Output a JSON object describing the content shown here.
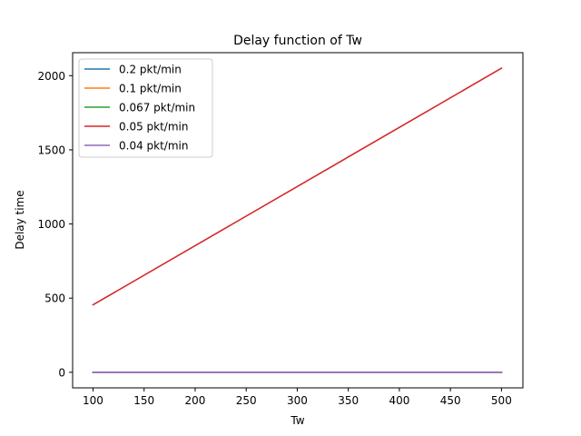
{
  "chart_data": {
    "type": "line",
    "title": "Delay function of Tw",
    "xlabel": "Tw",
    "ylabel": "Delay time",
    "xlim": [
      80,
      521
    ],
    "ylim": [
      -105,
      2155
    ],
    "xticks": [
      100,
      150,
      200,
      250,
      300,
      350,
      400,
      450,
      500
    ],
    "yticks": [
      0,
      500,
      1000,
      1500,
      2000
    ],
    "grid": false,
    "legend_position": "upper-left",
    "x": [
      100,
      500
    ],
    "series": [
      {
        "name": "0.2 pkt/min",
        "color": "#1f77b4",
        "values": [
          0,
          0
        ]
      },
      {
        "name": "0.1 pkt/min",
        "color": "#ff7f0e",
        "values": [
          0,
          0
        ]
      },
      {
        "name": "0.067 pkt/min",
        "color": "#2ca02c",
        "values": [
          0,
          0
        ]
      },
      {
        "name": "0.05 pkt/min",
        "color": "#d62728",
        "values": [
          455,
          2050
        ]
      },
      {
        "name": "0.04 pkt/min",
        "color": "#9467bd",
        "values": [
          0,
          0
        ]
      }
    ]
  }
}
